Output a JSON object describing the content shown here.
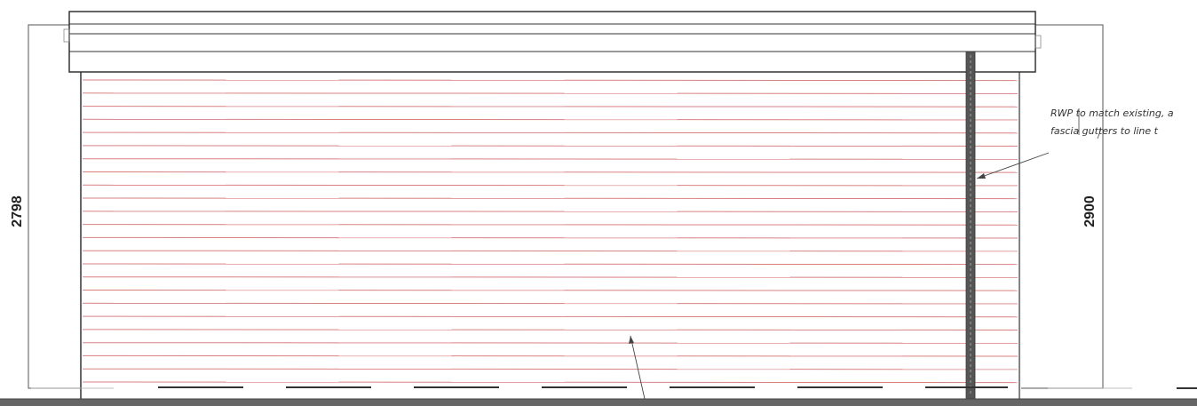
{
  "dimensions": {
    "left_height": "2798",
    "right_height": "2900"
  },
  "annotation": {
    "line1": "RWP to match existing, a",
    "line2": "fascia   gutters to line t"
  },
  "colors": {
    "line": "#333333",
    "cladding": "#d98080",
    "downpipe": "#555555",
    "ground": "#666666"
  },
  "cladding_board_count": 24
}
